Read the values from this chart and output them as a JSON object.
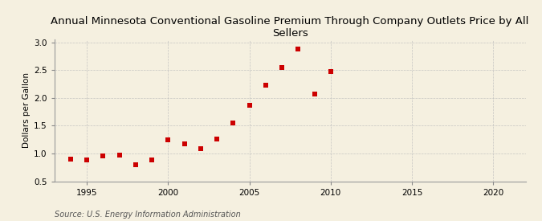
{
  "title": "Annual Minnesota Conventional Gasoline Premium Through Company Outlets Price by All Sellers",
  "ylabel": "Dollars per Gallon",
  "source": "Source: U.S. Energy Information Administration",
  "years": [
    1994,
    1995,
    1996,
    1997,
    1998,
    1999,
    2000,
    2001,
    2002,
    2003,
    2004,
    2005,
    2006,
    2007,
    2008,
    2009,
    2010
  ],
  "values": [
    0.9,
    0.89,
    0.96,
    0.97,
    0.8,
    0.89,
    1.25,
    1.17,
    1.09,
    1.26,
    1.55,
    1.87,
    2.23,
    2.55,
    2.88,
    2.07,
    2.48
  ],
  "marker_color": "#CC0000",
  "marker": "s",
  "marker_size": 5,
  "xlim": [
    1993,
    2022
  ],
  "ylim": [
    0.5,
    3.05
  ],
  "xticks": [
    1995,
    2000,
    2005,
    2010,
    2015,
    2020
  ],
  "yticks": [
    0.5,
    1.0,
    1.5,
    2.0,
    2.5,
    3.0
  ],
  "background_color": "#F5F0E0",
  "grid_color": "#BBBBBB",
  "title_fontsize": 9.5,
  "axis_label_fontsize": 7.5,
  "tick_fontsize": 7.5,
  "source_fontsize": 7
}
